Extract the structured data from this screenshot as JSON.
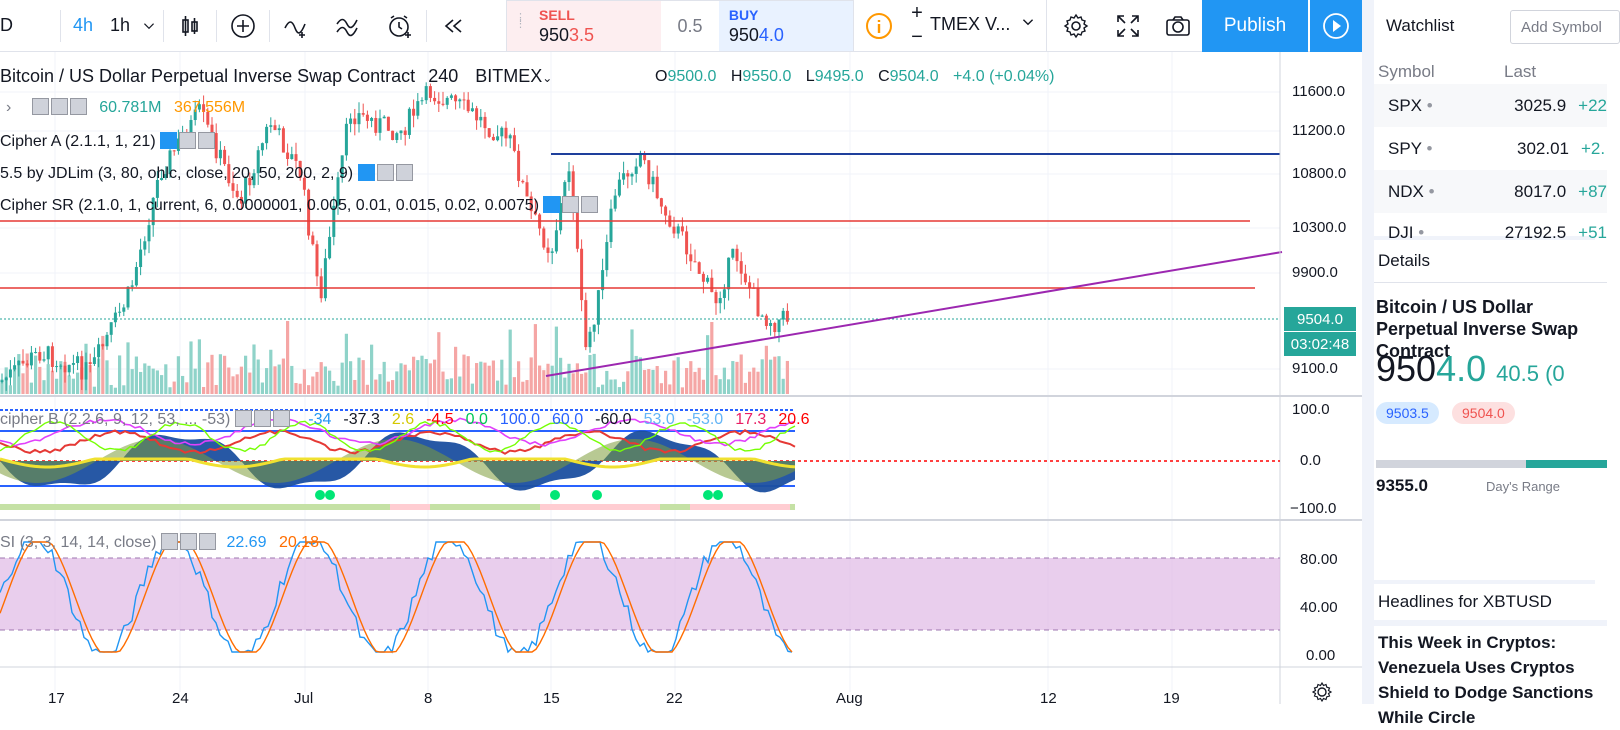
{
  "toolbar": {
    "symbol_fragment": "D",
    "intervals": [
      "4h",
      "1h"
    ],
    "exchange_fragment": "TMEX V...",
    "publish_label": "Publish"
  },
  "trade": {
    "sell_label": "SELL",
    "sell_price_main": "950",
    "sell_price_tail": "3.5",
    "spread": "0.5",
    "buy_label": "BUY",
    "buy_price_main": "950",
    "buy_price_tail": "4.0",
    "plus": "+",
    "minus": "−"
  },
  "chart": {
    "title": "Bitcoin / US Dollar Perpetual Inverse Swap Contract",
    "interval": "240",
    "exchange": "BITMEX",
    "ohlc": {
      "o_label": "O",
      "o": "9500.0",
      "h_label": "H",
      "h": "9550.0",
      "l_label": "L",
      "l": "9495.0",
      "c_label": "C",
      "c": "9504.0",
      "change": "+4.0 (+0.04%)"
    },
    "volume_value": "60.781M",
    "volume_ma": "367.556M",
    "indicators": [
      "Cipher A (2.1.1, 1, 21)",
      "5.5 by JDLim (3, 80, ohlc, close, 20, 50, 200, 2, 9)",
      "Cipher SR (2.1.0, 1, current, 6, 0.0000001, 0.005, 0.01, 0.015, 0.02, 0.0075)"
    ],
    "cipher_b": {
      "label": "cipher B (2.2.6, 9, 12, 53, ... -53)",
      "values": [
        "-34",
        "-37.3",
        "2.6",
        "-4.5",
        "0.0",
        "100.0",
        "60.0",
        "-60.0",
        "53.0",
        "-53.0",
        "17.3",
        "20.6"
      ],
      "colors": [
        "#2196f3",
        "#131722",
        "#d4c800",
        "#ff0000",
        "#00c853",
        "#2962ff",
        "#2962ff",
        "#131722",
        "#64b5f6",
        "#64b5f6",
        "#e91e63",
        "#ff0000"
      ]
    },
    "stoch": {
      "label": "SI (3, 3, 14, 14, close)",
      "k": "22.69",
      "d": "20.18"
    },
    "price_axis": [
      "11600.0",
      "11200.0",
      "10800.0",
      "10300.0",
      "9900.0",
      "9100.0"
    ],
    "last_price": "9504.0",
    "countdown": "03:02:48",
    "cipher_axis": [
      "100.0",
      "0.0",
      "−100.0"
    ],
    "stoch_axis": [
      "80.00",
      "40.00",
      "0.00"
    ],
    "date_axis": [
      "17",
      "24",
      "Jul",
      "8",
      "15",
      "22",
      "Aug",
      "12",
      "19"
    ]
  },
  "watchlist": {
    "title": "Watchlist",
    "add_placeholder": "Add Symbol",
    "col_symbol": "Symbol",
    "col_last": "Last",
    "rows": [
      {
        "symbol": "SPX",
        "last": "3025.9",
        "change": "+22"
      },
      {
        "symbol": "SPY",
        "last": "302.01",
        "change": "+2."
      },
      {
        "symbol": "NDX",
        "last": "8017.0",
        "change": "+87"
      },
      {
        "symbol": "DJI",
        "last": "27192.5",
        "change": "+51"
      }
    ]
  },
  "details": {
    "title": "Details",
    "name": "Bitcoin / US Dollar Perpetual Inverse Swap Contract",
    "price_main": "950",
    "price_tail": "4.0",
    "change": "40.5 (0",
    "bid": "9503.5",
    "ask": "9504.0",
    "range_low": "9355.0",
    "range_label": "Day's Range"
  },
  "headlines": {
    "title": "Headlines for XBTUSD",
    "first": "This Week in Cryptos: Venezuela Uses Cryptos Shield to Dodge Sanctions While Circle"
  },
  "colors": {
    "accent": "#2196f3",
    "up": "#26a69a",
    "down": "#ef5350",
    "purple": "#9c27b0"
  }
}
